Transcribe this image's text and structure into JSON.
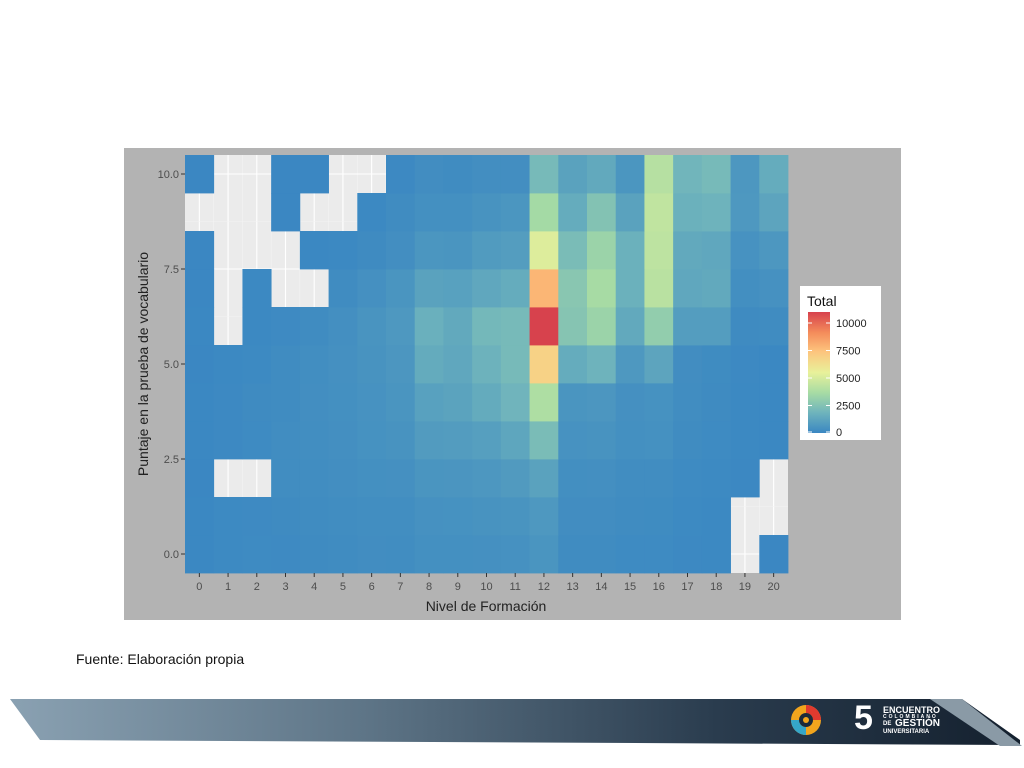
{
  "chart_data": {
    "type": "heatmap",
    "xlabel": "Nivel de Formación",
    "ylabel": "Puntaje en la prueba de vocabulario",
    "x_categories": [
      "0",
      "1",
      "2",
      "3",
      "4",
      "5",
      "6",
      "7",
      "8",
      "9",
      "10",
      "11",
      "12",
      "13",
      "14",
      "15",
      "16",
      "17",
      "18",
      "19",
      "20"
    ],
    "y_values": [
      0,
      1,
      2,
      3,
      4,
      5,
      6,
      7,
      8,
      9,
      10
    ],
    "y_tick_values": [
      0,
      2.5,
      5,
      7.5,
      10
    ],
    "y_tick_labels": [
      "0.0",
      "2.5",
      "5.0",
      "7.5",
      "10.0"
    ],
    "xlim": [
      -0.5,
      20.5
    ],
    "ylim": [
      -0.5,
      10.5
    ],
    "grid": true,
    "legend": {
      "title": "Total",
      "position": "right",
      "min": 0,
      "max": 11000,
      "breaks": [
        0,
        2500,
        5000,
        7500,
        10000
      ],
      "break_labels": [
        "0",
        "2500",
        "5000",
        "7500",
        "10000"
      ],
      "colors": [
        "#3a87c2",
        "#6fb4bc",
        "#a6dba4",
        "#e8f19a",
        "#fdc57e",
        "#f48c5b",
        "#d7424d"
      ]
    },
    "values": [
      [
        40,
        120,
        150,
        140,
        170,
        210,
        260,
        240,
        350,
        360,
        380,
        420,
        560,
        220,
        210,
        150,
        150,
        90,
        70,
        null,
        20
      ],
      [
        30,
        110,
        140,
        180,
        200,
        230,
        280,
        280,
        420,
        430,
        470,
        520,
        700,
        260,
        260,
        200,
        190,
        110,
        80,
        null,
        null
      ],
      [
        20,
        null,
        null,
        240,
        250,
        300,
        350,
        380,
        560,
        590,
        640,
        780,
        1100,
        320,
        330,
        250,
        250,
        150,
        110,
        60,
        null
      ],
      [
        40,
        100,
        150,
        240,
        280,
        340,
        430,
        490,
        820,
        860,
        960,
        1250,
        2200,
        450,
        500,
        360,
        390,
        210,
        150,
        80,
        30
      ],
      [
        40,
        90,
        160,
        210,
        300,
        350,
        450,
        560,
        1050,
        1150,
        1450,
        1850,
        3900,
        560,
        620,
        380,
        430,
        240,
        170,
        80,
        40
      ],
      [
        20,
        80,
        120,
        200,
        280,
        370,
        470,
        620,
        1450,
        1300,
        1750,
        2100,
        6800,
        1500,
        1800,
        680,
        1200,
        260,
        190,
        90,
        40
      ],
      [
        30,
        null,
        80,
        140,
        200,
        340,
        520,
        700,
        1650,
        1400,
        2000,
        2100,
        11000,
        2600,
        3300,
        1400,
        3000,
        900,
        900,
        180,
        200
      ],
      [
        20,
        null,
        80,
        null,
        null,
        220,
        380,
        550,
        1100,
        1050,
        1300,
        1500,
        7800,
        2700,
        3700,
        1700,
        4200,
        1300,
        1400,
        320,
        400
      ],
      [
        20,
        null,
        null,
        null,
        40,
        80,
        170,
        300,
        600,
        550,
        800,
        900,
        5200,
        2200,
        3300,
        1700,
        4300,
        1400,
        1300,
        450,
        650
      ],
      [
        null,
        null,
        null,
        20,
        null,
        null,
        80,
        200,
        360,
        350,
        500,
        600,
        3600,
        1500,
        2500,
        1100,
        4400,
        1700,
        1800,
        700,
        1200
      ],
      [
        20,
        null,
        null,
        20,
        20,
        null,
        null,
        100,
        260,
        200,
        300,
        300,
        2100,
        1100,
        1400,
        600,
        4100,
        1900,
        2100,
        650,
        1500
      ]
    ]
  },
  "source_note": "Fuente: Elaboración propia",
  "footer": {
    "logo_number": "5",
    "logo_line1": "ENCUENTRO",
    "logo_line2": "COLOMBIANO",
    "logo_line3": "GESTIÓN",
    "logo_line4": "UNIVERSITARIA",
    "logo_prefix": "DE"
  },
  "colors": {
    "frame": "#b3b3b3",
    "panel": "#ebebeb",
    "grid": "#ffffff",
    "footer_dark": "#1c2a3a",
    "footer_light": "#8aa1b2"
  }
}
